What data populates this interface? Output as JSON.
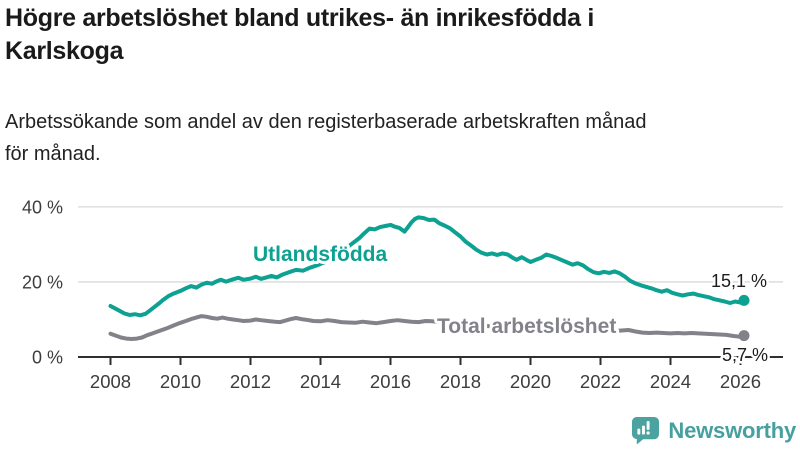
{
  "title": "Högre arbetslöshet bland utrikes- än inrikesfödda i\nKarlskoga",
  "subtitle": "Arbetssökande som andel av den registerbaserade arbetskraften månad\nför månad.",
  "branding": {
    "logo_text": "Newsworthy",
    "logo_icon": "bar-chart-speech-bubble-icon",
    "brand_color": "#4aa3a1"
  },
  "chart_data": {
    "type": "line",
    "title": "Högre arbetslöshet bland utrikes- än inrikesfödda i Karlskoga",
    "subtitle": "Arbetssökande som andel av den registerbaserade arbetskraften månad för månad.",
    "unit": "%",
    "grid": "horizontal-only",
    "legend_position": "inline-labels",
    "x_axis": {
      "range": [
        2007.05,
        2027.2
      ],
      "ticks": [
        2008,
        2010,
        2012,
        2014,
        2016,
        2018,
        2020,
        2022,
        2024,
        2026
      ]
    },
    "y_axis": {
      "range": [
        0,
        43
      ],
      "ticks": [
        {
          "value": 0,
          "label": "0 %"
        },
        {
          "value": 20,
          "label": "20 %"
        },
        {
          "value": 40,
          "label": "40 %"
        }
      ]
    },
    "colors": {
      "grid": "#d9d9d9",
      "axis": "#2f2f2f",
      "tick_text": "#3d3d3d",
      "value_text": "#1c1c1c"
    },
    "series": [
      {
        "name": "Utlandsfödda",
        "color": "#0da192",
        "end_label": "15,1 %",
        "end_value": 15.1,
        "points": [
          [
            2008.0,
            13.6
          ],
          [
            2008.2,
            12.6
          ],
          [
            2008.4,
            11.6
          ],
          [
            2008.55,
            11.2
          ],
          [
            2008.7,
            11.4
          ],
          [
            2008.85,
            11.1
          ],
          [
            2009.0,
            11.5
          ],
          [
            2009.1,
            12.2
          ],
          [
            2009.25,
            13.3
          ],
          [
            2009.4,
            14.4
          ],
          [
            2009.5,
            15.2
          ],
          [
            2009.65,
            16.2
          ],
          [
            2009.8,
            16.9
          ],
          [
            2010.0,
            17.6
          ],
          [
            2010.15,
            18.3
          ],
          [
            2010.3,
            18.9
          ],
          [
            2010.45,
            18.5
          ],
          [
            2010.6,
            19.3
          ],
          [
            2010.75,
            19.8
          ],
          [
            2010.9,
            19.5
          ],
          [
            2011.0,
            20.0
          ],
          [
            2011.15,
            20.6
          ],
          [
            2011.3,
            20.1
          ],
          [
            2011.5,
            20.7
          ],
          [
            2011.65,
            21.1
          ],
          [
            2011.8,
            20.6
          ],
          [
            2012.0,
            20.9
          ],
          [
            2012.15,
            21.4
          ],
          [
            2012.3,
            20.8
          ],
          [
            2012.45,
            21.2
          ],
          [
            2012.6,
            21.6
          ],
          [
            2012.75,
            21.2
          ],
          [
            2012.9,
            21.9
          ],
          [
            2013.1,
            22.6
          ],
          [
            2013.3,
            23.2
          ],
          [
            2013.5,
            23.0
          ],
          [
            2013.7,
            23.8
          ],
          [
            2013.9,
            24.4
          ],
          [
            2014.1,
            25.2
          ],
          [
            2014.3,
            26.3
          ],
          [
            2014.5,
            27.4
          ],
          [
            2014.7,
            28.8
          ],
          [
            2014.9,
            30.2
          ],
          [
            2015.1,
            31.6
          ],
          [
            2015.25,
            33.0
          ],
          [
            2015.4,
            34.2
          ],
          [
            2015.55,
            34.0
          ],
          [
            2015.7,
            34.6
          ],
          [
            2015.85,
            34.9
          ],
          [
            2016.0,
            35.2
          ],
          [
            2016.1,
            34.8
          ],
          [
            2016.25,
            34.4
          ],
          [
            2016.4,
            33.4
          ],
          [
            2016.5,
            34.6
          ],
          [
            2016.6,
            35.9
          ],
          [
            2016.7,
            36.8
          ],
          [
            2016.8,
            37.2
          ],
          [
            2016.95,
            37.0
          ],
          [
            2017.1,
            36.5
          ],
          [
            2017.25,
            36.6
          ],
          [
            2017.4,
            35.6
          ],
          [
            2017.55,
            35.0
          ],
          [
            2017.7,
            34.3
          ],
          [
            2017.85,
            33.2
          ],
          [
            2018.0,
            32.1
          ],
          [
            2018.15,
            30.7
          ],
          [
            2018.3,
            29.7
          ],
          [
            2018.45,
            28.6
          ],
          [
            2018.6,
            27.8
          ],
          [
            2018.75,
            27.3
          ],
          [
            2018.9,
            27.6
          ],
          [
            2019.05,
            27.2
          ],
          [
            2019.2,
            27.6
          ],
          [
            2019.35,
            27.3
          ],
          [
            2019.5,
            26.4
          ],
          [
            2019.6,
            25.9
          ],
          [
            2019.75,
            26.6
          ],
          [
            2019.9,
            25.8
          ],
          [
            2020.0,
            25.3
          ],
          [
            2020.15,
            25.9
          ],
          [
            2020.3,
            26.4
          ],
          [
            2020.45,
            27.3
          ],
          [
            2020.6,
            26.9
          ],
          [
            2020.75,
            26.4
          ],
          [
            2020.9,
            25.8
          ],
          [
            2021.05,
            25.2
          ],
          [
            2021.2,
            24.6
          ],
          [
            2021.35,
            25.0
          ],
          [
            2021.5,
            24.4
          ],
          [
            2021.65,
            23.4
          ],
          [
            2021.8,
            22.6
          ],
          [
            2021.95,
            22.3
          ],
          [
            2022.1,
            22.7
          ],
          [
            2022.25,
            22.4
          ],
          [
            2022.4,
            22.8
          ],
          [
            2022.55,
            22.3
          ],
          [
            2022.7,
            21.4
          ],
          [
            2022.85,
            20.3
          ],
          [
            2023.0,
            19.6
          ],
          [
            2023.15,
            19.1
          ],
          [
            2023.3,
            18.7
          ],
          [
            2023.45,
            18.3
          ],
          [
            2023.6,
            17.8
          ],
          [
            2023.75,
            17.4
          ],
          [
            2023.9,
            17.8
          ],
          [
            2024.05,
            17.1
          ],
          [
            2024.2,
            16.7
          ],
          [
            2024.35,
            16.4
          ],
          [
            2024.5,
            16.7
          ],
          [
            2024.65,
            16.9
          ],
          [
            2024.8,
            16.5
          ],
          [
            2024.95,
            16.2
          ],
          [
            2025.1,
            15.9
          ],
          [
            2025.25,
            15.4
          ],
          [
            2025.4,
            15.1
          ],
          [
            2025.55,
            14.8
          ],
          [
            2025.7,
            14.4
          ],
          [
            2025.85,
            14.8
          ],
          [
            2026.0,
            14.5
          ],
          [
            2026.1,
            15.1
          ]
        ]
      },
      {
        "name": "Total arbetslöshet",
        "color": "#82828a",
        "end_label": "5,7 %",
        "end_value": 5.7,
        "points": [
          [
            2008.0,
            6.2
          ],
          [
            2008.15,
            5.7
          ],
          [
            2008.3,
            5.2
          ],
          [
            2008.45,
            4.9
          ],
          [
            2008.6,
            4.8
          ],
          [
            2008.75,
            4.9
          ],
          [
            2008.9,
            5.2
          ],
          [
            2009.05,
            5.8
          ],
          [
            2009.2,
            6.3
          ],
          [
            2009.35,
            6.8
          ],
          [
            2009.5,
            7.3
          ],
          [
            2009.65,
            7.8
          ],
          [
            2009.8,
            8.4
          ],
          [
            2010.0,
            9.1
          ],
          [
            2010.15,
            9.6
          ],
          [
            2010.3,
            10.1
          ],
          [
            2010.45,
            10.5
          ],
          [
            2010.6,
            10.9
          ],
          [
            2010.75,
            10.7
          ],
          [
            2010.9,
            10.4
          ],
          [
            2011.05,
            10.2
          ],
          [
            2011.2,
            10.5
          ],
          [
            2011.35,
            10.2
          ],
          [
            2011.5,
            10.0
          ],
          [
            2011.65,
            9.8
          ],
          [
            2011.8,
            9.6
          ],
          [
            2012.0,
            9.7
          ],
          [
            2012.15,
            10.0
          ],
          [
            2012.3,
            9.8
          ],
          [
            2012.5,
            9.6
          ],
          [
            2012.7,
            9.4
          ],
          [
            2012.85,
            9.3
          ],
          [
            2013.0,
            9.7
          ],
          [
            2013.15,
            10.1
          ],
          [
            2013.3,
            10.4
          ],
          [
            2013.45,
            10.1
          ],
          [
            2013.6,
            9.9
          ],
          [
            2013.8,
            9.6
          ],
          [
            2014.0,
            9.5
          ],
          [
            2014.2,
            9.8
          ],
          [
            2014.4,
            9.6
          ],
          [
            2014.6,
            9.3
          ],
          [
            2014.8,
            9.2
          ],
          [
            2015.0,
            9.1
          ],
          [
            2015.2,
            9.4
          ],
          [
            2015.4,
            9.2
          ],
          [
            2015.6,
            9.0
          ],
          [
            2015.8,
            9.3
          ],
          [
            2016.0,
            9.6
          ],
          [
            2016.2,
            9.8
          ],
          [
            2016.4,
            9.6
          ],
          [
            2016.6,
            9.4
          ],
          [
            2016.8,
            9.3
          ],
          [
            2017.0,
            9.6
          ],
          [
            2017.2,
            9.5
          ],
          [
            2017.4,
            9.3
          ],
          [
            2017.6,
            9.1
          ],
          [
            2017.8,
            8.9
          ],
          [
            2018.0,
            8.7
          ],
          [
            2018.3,
            8.5
          ],
          [
            2018.6,
            8.3
          ],
          [
            2018.9,
            8.2
          ],
          [
            2019.2,
            8.0
          ],
          [
            2019.5,
            7.8
          ],
          [
            2019.8,
            7.8
          ],
          [
            2020.0,
            7.9
          ],
          [
            2020.2,
            8.3
          ],
          [
            2020.4,
            8.6
          ],
          [
            2020.6,
            8.4
          ],
          [
            2020.8,
            8.2
          ],
          [
            2021.0,
            8.0
          ],
          [
            2021.3,
            7.7
          ],
          [
            2021.6,
            7.4
          ],
          [
            2021.9,
            7.2
          ],
          [
            2022.2,
            7.1
          ],
          [
            2022.5,
            7.0
          ],
          [
            2022.8,
            7.2
          ],
          [
            2023.0,
            6.8
          ],
          [
            2023.2,
            6.5
          ],
          [
            2023.4,
            6.4
          ],
          [
            2023.6,
            6.5
          ],
          [
            2023.8,
            6.4
          ],
          [
            2024.0,
            6.3
          ],
          [
            2024.2,
            6.4
          ],
          [
            2024.4,
            6.3
          ],
          [
            2024.6,
            6.4
          ],
          [
            2024.8,
            6.3
          ],
          [
            2025.0,
            6.2
          ],
          [
            2025.2,
            6.1
          ],
          [
            2025.4,
            6.0
          ],
          [
            2025.6,
            5.9
          ],
          [
            2025.8,
            5.6
          ],
          [
            2026.0,
            5.4
          ],
          [
            2026.1,
            5.7
          ]
        ]
      }
    ]
  }
}
